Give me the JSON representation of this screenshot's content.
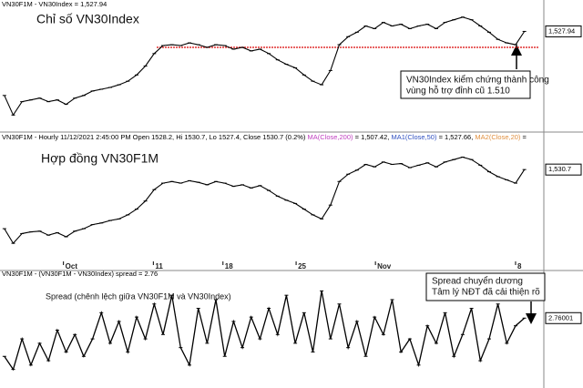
{
  "chart_data": [
    {
      "type": "line",
      "header": [
        {
          "text": "VN30F1M - VN30Index = 1,527.94",
          "color": "#000000"
        }
      ],
      "title": "Chỉ số VN30Index",
      "color": "#000000",
      "values": [
        1456,
        1434,
        1449,
        1451,
        1453,
        1449,
        1451,
        1446,
        1453,
        1456,
        1461,
        1463,
        1465,
        1468,
        1472,
        1479,
        1489,
        1503,
        1512,
        1513,
        1512,
        1515,
        1513,
        1510,
        1513,
        1512,
        1508,
        1510,
        1506,
        1508,
        1503,
        1496,
        1491,
        1487,
        1479,
        1472,
        1468,
        1484,
        1513,
        1522,
        1527,
        1534,
        1531,
        1538,
        1534,
        1536,
        1531,
        1534,
        1536,
        1531,
        1538,
        1541,
        1544,
        1541,
        1534,
        1527,
        1519,
        1515,
        1513,
        1527.94
      ],
      "ylim": [
        1420,
        1555
      ],
      "xlim": [
        -0.5,
        61
      ],
      "last_label": "1,527.94",
      "support_level": 1510,
      "support_color": "#e03030",
      "callout": [
        "VN30Index kiểm chứng thành công",
        "vùng hỗ trợ đỉnh cũ 1.510"
      ]
    },
    {
      "type": "line",
      "header": [
        {
          "text": "VN30F1M - Hourly 11/12/2021 2:45:00 PM Open 1528.2, Hi 1530.7, Lo 1527.4, Close 1530.7 (0.2%) ",
          "color": "#000000"
        },
        {
          "text": "MA(Close,200)",
          "color": "#c040c0"
        },
        {
          "text": " = 1,507.42, ",
          "color": "#000000"
        },
        {
          "text": "MA1(Close,50)",
          "color": "#3050c0"
        },
        {
          "text": " = 1,527.66, ",
          "color": "#000000"
        },
        {
          "text": "MA2(Close,20)",
          "color": "#e09040"
        },
        {
          "text": " = ",
          "color": "#000000"
        }
      ],
      "title": "Hợp đồng VN30F1M",
      "color": "#000000",
      "values": [
        1458,
        1440,
        1452,
        1454,
        1455,
        1450,
        1453,
        1448,
        1455,
        1458,
        1463,
        1465,
        1468,
        1470,
        1475,
        1482,
        1492,
        1506,
        1514,
        1516,
        1514,
        1517,
        1515,
        1512,
        1516,
        1514,
        1510,
        1512,
        1508,
        1511,
        1505,
        1498,
        1493,
        1489,
        1482,
        1475,
        1470,
        1487,
        1516,
        1525,
        1530,
        1537,
        1534,
        1540,
        1537,
        1538,
        1533,
        1536,
        1539,
        1534,
        1540,
        1543,
        1546,
        1543,
        1536,
        1528,
        1522,
        1518,
        1514,
        1530.7
      ],
      "ylim": [
        1420,
        1560
      ],
      "xlim": [
        -0.5,
        61
      ],
      "last_label": "1,530.7",
      "xticks": [
        {
          "value": 6.7,
          "label": "Oct"
        },
        {
          "value": 16.9,
          "label": "11"
        },
        {
          "value": 24.8,
          "label": "18"
        },
        {
          "value": 33.1,
          "label": "25"
        },
        {
          "value": 42.1,
          "label": "Nov"
        },
        {
          "value": 58,
          "label": "8"
        }
      ]
    },
    {
      "type": "line",
      "header": [
        {
          "text": "VN30F1M - (VN30F1M - VN30Index) spread = 2.76",
          "color": "#000000"
        }
      ],
      "title": "Spread (chênh lệch giữa VN30F1M và VN30Index)",
      "color": "#000000",
      "values": [
        -6,
        -9,
        -2,
        -8,
        -3,
        -7,
        0,
        -5,
        -1,
        -6,
        -2,
        4,
        -3,
        2,
        -5,
        3,
        -2,
        6,
        -1,
        8,
        -4,
        -8,
        5,
        -3,
        7,
        -6,
        2,
        -4,
        3,
        -2,
        5,
        -1,
        8,
        -3,
        4,
        -5,
        9,
        -2,
        6,
        -4,
        2,
        -6,
        3,
        -1,
        7,
        -5,
        -2,
        -8,
        1,
        -3,
        4,
        -6,
        -1,
        5,
        -7,
        -2,
        6,
        -3,
        1,
        2.76
      ],
      "ylim": [
        -12,
        12
      ],
      "xlim": [
        -0.5,
        61
      ],
      "last_label": "2.76001",
      "callout": [
        "Spread chuyển dương",
        "Tâm lý NĐT đã cải thiện rõ"
      ]
    }
  ]
}
